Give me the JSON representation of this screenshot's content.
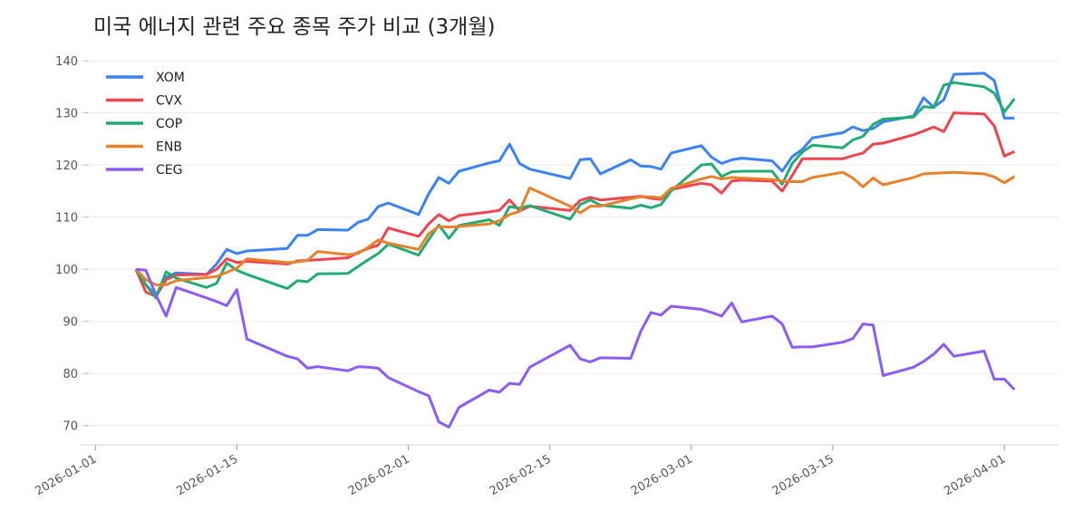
{
  "chart_data": {
    "type": "line",
    "title": "미국 에너지 관련 주요 종목 주가 비교 (3개월)",
    "xlabel": "",
    "ylabel": "",
    "xlim": [
      "2025-12-30",
      "2026-04-06"
    ],
    "ylim": [
      66.3,
      142.1
    ],
    "grid": "horizontal",
    "legend": "top-left",
    "xticks": [
      "2026-01-01",
      "2026-01-15",
      "2026-02-01",
      "2026-02-15",
      "2026-03-01",
      "2026-03-15",
      "2026-04-01"
    ],
    "yticks": [
      70,
      80,
      90,
      100,
      110,
      120,
      130,
      140
    ],
    "x": [
      "2026-01-05",
      "2026-01-06",
      "2026-01-07",
      "2026-01-08",
      "2026-01-09",
      "2026-01-12",
      "2026-01-13",
      "2026-01-14",
      "2026-01-15",
      "2026-01-16",
      "2026-01-20",
      "2026-01-21",
      "2026-01-22",
      "2026-01-23",
      "2026-01-26",
      "2026-01-27",
      "2026-01-28",
      "2026-01-29",
      "2026-01-30",
      "2026-02-02",
      "2026-02-03",
      "2026-02-04",
      "2026-02-05",
      "2026-02-06",
      "2026-02-09",
      "2026-02-10",
      "2026-02-11",
      "2026-02-12",
      "2026-02-13",
      "2026-02-17",
      "2026-02-18",
      "2026-02-19",
      "2026-02-20",
      "2026-02-23",
      "2026-02-24",
      "2026-02-25",
      "2026-02-26",
      "2026-02-27",
      "2026-03-02",
      "2026-03-03",
      "2026-03-04",
      "2026-03-05",
      "2026-03-06",
      "2026-03-09",
      "2026-03-10",
      "2026-03-11",
      "2026-03-12",
      "2026-03-13",
      "2026-03-16",
      "2026-03-17",
      "2026-03-18",
      "2026-03-19",
      "2026-03-20",
      "2026-03-23",
      "2026-03-24",
      "2026-03-25",
      "2026-03-26",
      "2026-03-27",
      "2026-03-30",
      "2026-03-31",
      "2026-04-01",
      "2026-04-02"
    ],
    "series": [
      {
        "name": "XOM",
        "color": "#3b82f6",
        "values": [
          100,
          97,
          95,
          98.5,
          99.3,
          99,
          101,
          103.8,
          103,
          103.5,
          104,
          106.5,
          106.5,
          107.6,
          107.5,
          109,
          109.6,
          112,
          112.7,
          110.5,
          114.5,
          117.6,
          116.5,
          118.8,
          120.4,
          120.8,
          124,
          120.3,
          119.2,
          117.4,
          121,
          121.2,
          118.3,
          121,
          119.8,
          119.7,
          119.2,
          122.3,
          123.7,
          121.5,
          120.3,
          121,
          121.3,
          120.8,
          118.8,
          121.6,
          123,
          125.2,
          126.2,
          127.3,
          126.6,
          127,
          128.3,
          129.4,
          132.9,
          131.1,
          132.5,
          137.4,
          137.6,
          136.2,
          129,
          129
        ]
      },
      {
        "name": "CVX",
        "color": "#ef4451",
        "values": [
          100,
          95.6,
          94.8,
          98,
          98.9,
          99,
          100,
          102,
          101.3,
          101.5,
          101,
          101.6,
          101.7,
          101.8,
          102.2,
          103.2,
          104,
          104.6,
          107.9,
          106.3,
          108.7,
          110.5,
          109.3,
          110.3,
          111,
          111.3,
          113.3,
          111.2,
          112.1,
          111.3,
          113.2,
          113.8,
          113.3,
          113.8,
          114,
          113.6,
          113.4,
          115.3,
          116.5,
          116.2,
          114.6,
          116.9,
          117.1,
          116.9,
          115,
          118,
          121.2,
          121.2,
          121.2,
          121.8,
          122.3,
          124,
          124.2,
          125.8,
          126.5,
          127.3,
          126.4,
          130,
          129.8,
          127.5,
          121.7,
          122.6
        ]
      },
      {
        "name": "COP",
        "color": "#22ac72",
        "values": [
          100,
          97,
          94.5,
          99.5,
          98.3,
          96.5,
          97.3,
          101.2,
          99.8,
          99,
          96.3,
          97.8,
          97.6,
          99.1,
          99.2,
          100.5,
          101.8,
          103,
          104.8,
          102.7,
          105.7,
          108.5,
          105.9,
          108.4,
          109.5,
          108.4,
          112,
          111.7,
          112.2,
          109.6,
          112.4,
          113.3,
          112.3,
          111.7,
          112.3,
          111.8,
          112.4,
          115,
          120,
          120.2,
          117.8,
          118.7,
          118.8,
          118.8,
          116.3,
          120.3,
          122.5,
          123.8,
          123.3,
          124.8,
          125.5,
          127.8,
          128.8,
          129.2,
          131.2,
          131,
          135.3,
          135.8,
          135,
          133.8,
          130.2,
          132.7
        ]
      },
      {
        "name": "ENB",
        "color": "#e8822a",
        "values": [
          100,
          98,
          97,
          97,
          97.8,
          98.4,
          98.6,
          99.4,
          100.2,
          102,
          101.3,
          101.4,
          101.7,
          103.4,
          102.8,
          103,
          104.2,
          105.6,
          105,
          103.8,
          106.8,
          108.2,
          108.1,
          108.2,
          108.7,
          109.3,
          110.5,
          111.1,
          115.6,
          112.1,
          110.8,
          112.1,
          112.1,
          113.5,
          113.9,
          113.9,
          113.7,
          115.5,
          117.3,
          117.8,
          117.3,
          117.6,
          117.5,
          117.2,
          116.9,
          116.8,
          116.8,
          117.6,
          118.6,
          117.5,
          115.8,
          117.5,
          116.2,
          117.6,
          118.3,
          118.4,
          118.5,
          118.6,
          118.3,
          117.7,
          116.6,
          117.8
        ]
      },
      {
        "name": "CEG",
        "color": "#8b5cf6",
        "values": [
          100,
          99.8,
          95,
          91,
          96.5,
          94.5,
          93.8,
          93,
          96.1,
          86.6,
          83.3,
          82.8,
          81,
          81.3,
          80.5,
          81.3,
          81.2,
          81,
          79.2,
          76.5,
          75.7,
          70.7,
          69.7,
          73.5,
          76.8,
          76.4,
          78.1,
          77.9,
          81.2,
          85.4,
          82.8,
          82.2,
          83,
          82.9,
          88.1,
          91.7,
          91.2,
          92.9,
          92.3,
          91.7,
          91,
          93.5,
          89.9,
          91,
          89.5,
          85,
          85.1,
          85.1,
          86,
          86.7,
          89.5,
          89.3,
          79.6,
          81.2,
          82.3,
          83.7,
          85.6,
          83.3,
          84.3,
          78.9,
          78.9,
          76.9
        ]
      }
    ]
  }
}
